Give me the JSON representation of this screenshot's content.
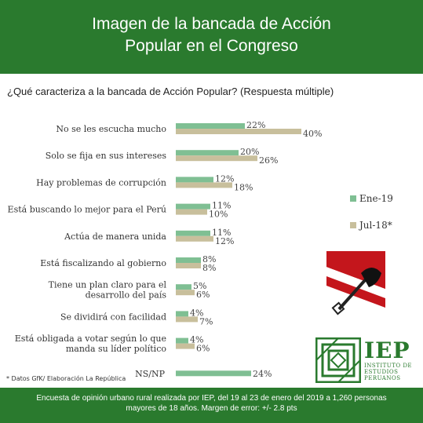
{
  "header": {
    "title_line1": "Imagen de la bancada de Acción",
    "title_line2": "Popular en el Congreso"
  },
  "question": "¿Qué caracteriza a la bancada de Acción Popular? (Respuesta múltiple)",
  "source": "* Datos GfK/ Elaboración La República",
  "footer": {
    "line1": "Encuesta de opinión urbano rural realizada por IEP, del 19 al 23 de enero del 2019 a 1,260 personas",
    "line2": "mayores de 18 años. Margen de error: +/- 2.8 pts"
  },
  "logo": {
    "name": "IEP",
    "sub1": "INSTITUTO DE",
    "sub2": "ESTUDIOS",
    "sub3": "PERUANOS"
  },
  "colors": {
    "header_green": "#2a7a2e",
    "series_ene19": "#7fbf93",
    "series_jul18": "#c8bf9c",
    "flag_red": "#c4161c"
  },
  "chart_data": {
    "type": "bar",
    "orientation": "horizontal",
    "categories": [
      [
        "No se les escucha mucho"
      ],
      [
        "Solo se fija en sus intereses"
      ],
      [
        "Hay problemas de corrupción"
      ],
      [
        "Está buscando lo mejor para el Perú"
      ],
      [
        "Actúa de manera unida"
      ],
      [
        "Está fiscalizando al gobierno"
      ],
      [
        "Tiene un plan claro para el",
        "desarrollo del país"
      ],
      [
        "Se dividirá con facilidad"
      ],
      [
        "Está obligada a votar según lo que",
        "manda su líder político"
      ],
      [
        "NS/NP"
      ]
    ],
    "series": [
      {
        "name": "Ene-19",
        "values": [
          22,
          20,
          12,
          11,
          11,
          8,
          5,
          4,
          4,
          24
        ],
        "labels": [
          "22%",
          "20%",
          "12%",
          "11%",
          "11%",
          "8%",
          "5%",
          "4%",
          "4%",
          "24%"
        ]
      },
      {
        "name": "Jul-18*",
        "values": [
          40,
          26,
          18,
          10,
          12,
          8,
          6,
          7,
          6,
          null
        ],
        "labels": [
          "40%",
          "26%",
          "18%",
          "10%",
          "12%",
          "8%",
          "6%",
          "7%",
          "6%",
          ""
        ]
      }
    ],
    "legend_position": "right",
    "grid": false,
    "xlim": [
      0,
      45
    ]
  }
}
